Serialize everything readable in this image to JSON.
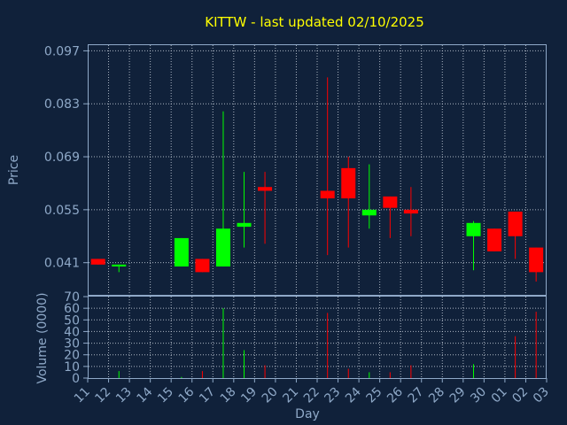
{
  "chart_data": {
    "type": "candlestick",
    "title": "KITTW - last updated 02/10/2025",
    "xlabel": "Day",
    "price_panel": {
      "ylabel": "Price",
      "yticks": [
        "0.097",
        "0.083",
        "0.069",
        "0.055",
        "0.041"
      ],
      "ylim": [
        0.0325,
        0.0985
      ]
    },
    "volume_panel": {
      "ylabel": "Volume (0000)",
      "yticks": [
        "70",
        "60",
        "50",
        "40",
        "30",
        "20",
        "10",
        "0"
      ],
      "ylim": [
        0,
        70
      ]
    },
    "x_ticks": [
      "11",
      "12",
      "13",
      "14",
      "15",
      "16",
      "17",
      "18",
      "19",
      "20",
      "21",
      "22",
      "23",
      "24",
      "25",
      "26",
      "27",
      "28",
      "29",
      "30",
      "01",
      "02",
      "03"
    ],
    "candles": [
      {
        "day": "11",
        "open": 0.042,
        "high": 0.042,
        "low": 0.0405,
        "close": 0.0405,
        "volume": 0,
        "color": "red"
      },
      {
        "day": "12",
        "open": 0.04,
        "high": 0.0405,
        "low": 0.0385,
        "close": 0.0405,
        "volume": 6,
        "color": "green"
      },
      {
        "day": "15",
        "open": 0.04,
        "high": 0.0475,
        "low": 0.04,
        "close": 0.0475,
        "volume": 1,
        "color": "green"
      },
      {
        "day": "16",
        "open": 0.042,
        "high": 0.042,
        "low": 0.0385,
        "close": 0.0385,
        "volume": 6,
        "color": "red"
      },
      {
        "day": "17",
        "open": 0.04,
        "high": 0.081,
        "low": 0.04,
        "close": 0.05,
        "volume": 60,
        "color": "green"
      },
      {
        "day": "18",
        "open": 0.0505,
        "high": 0.065,
        "low": 0.045,
        "close": 0.0515,
        "volume": 24,
        "color": "green"
      },
      {
        "day": "19",
        "open": 0.061,
        "high": 0.065,
        "low": 0.046,
        "close": 0.06,
        "volume": 11,
        "color": "red"
      },
      {
        "day": "22",
        "open": 0.06,
        "high": 0.09,
        "low": 0.043,
        "close": 0.058,
        "volume": 56,
        "color": "red"
      },
      {
        "day": "23",
        "open": 0.066,
        "high": 0.069,
        "low": 0.045,
        "close": 0.058,
        "volume": 8,
        "color": "red"
      },
      {
        "day": "24",
        "open": 0.0535,
        "high": 0.067,
        "low": 0.05,
        "close": 0.055,
        "volume": 5,
        "color": "green"
      },
      {
        "day": "25",
        "open": 0.0585,
        "high": 0.0585,
        "low": 0.0475,
        "close": 0.0555,
        "volume": 5,
        "color": "red"
      },
      {
        "day": "26",
        "open": 0.055,
        "high": 0.061,
        "low": 0.048,
        "close": 0.054,
        "volume": 11,
        "color": "red"
      },
      {
        "day": "29",
        "open": 0.048,
        "high": 0.052,
        "low": 0.039,
        "close": 0.0515,
        "volume": 12,
        "color": "green"
      },
      {
        "day": "30",
        "open": 0.05,
        "high": 0.05,
        "low": 0.044,
        "close": 0.044,
        "volume": 0,
        "color": "red"
      },
      {
        "day": "01",
        "open": 0.0545,
        "high": 0.0545,
        "low": 0.042,
        "close": 0.048,
        "volume": 36,
        "color": "red"
      },
      {
        "day": "02",
        "open": 0.045,
        "high": 0.045,
        "low": 0.036,
        "close": 0.0385,
        "volume": 57,
        "color": "red"
      }
    ],
    "colors": {
      "background": "#10213a",
      "up": "#00ff00",
      "down": "#ff0000",
      "title": "#ffff00",
      "axis_text": "#8fa9c8",
      "grid": "#c8d0dc"
    },
    "grid": true
  }
}
